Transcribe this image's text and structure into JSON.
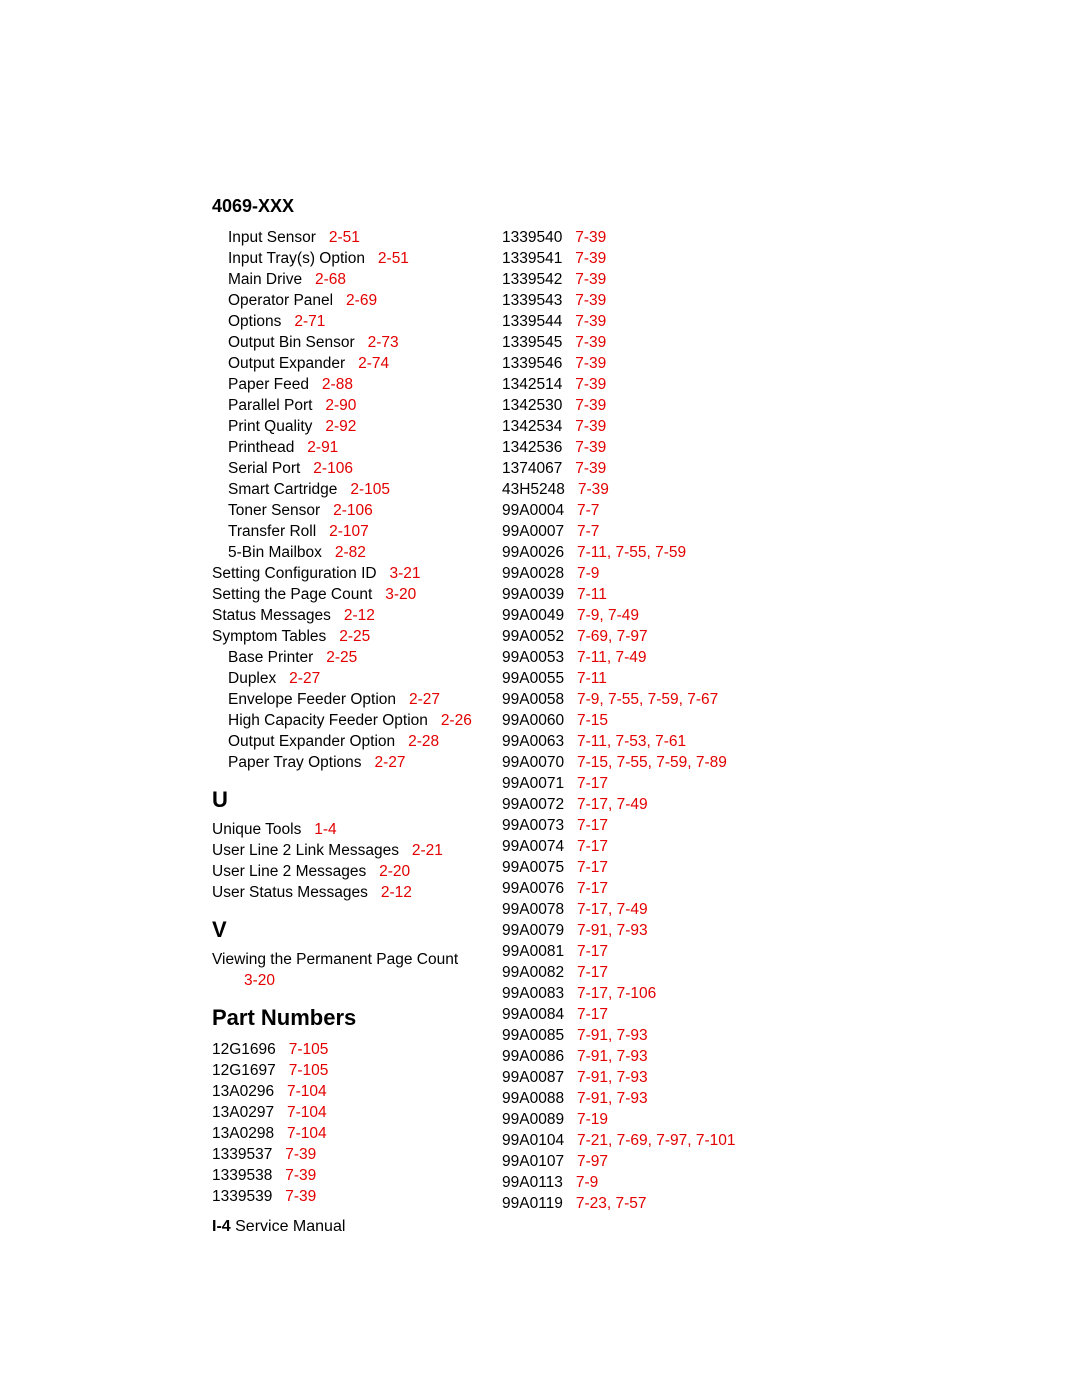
{
  "header": "4069-XXX",
  "footer_page": "I-4",
  "footer_text": " Service Manual",
  "ref_color": "#e30000",
  "left_groups": [
    {
      "type": "rows",
      "rows": [
        {
          "indent": 1,
          "label": "Input Sensor",
          "ref": "2-51"
        },
        {
          "indent": 1,
          "label": "Input Tray(s) Option",
          "ref": "2-51"
        },
        {
          "indent": 1,
          "label": "Main Drive",
          "ref": "2-68"
        },
        {
          "indent": 1,
          "label": "Operator Panel",
          "ref": "2-69"
        },
        {
          "indent": 1,
          "label": "Options",
          "ref": "2-71"
        },
        {
          "indent": 1,
          "label": "Output Bin Sensor",
          "ref": "2-73"
        },
        {
          "indent": 1,
          "label": "Output Expander",
          "ref": "2-74"
        },
        {
          "indent": 1,
          "label": "Paper Feed",
          "ref": "2-88"
        },
        {
          "indent": 1,
          "label": "Parallel Port",
          "ref": "2-90"
        },
        {
          "indent": 1,
          "label": "Print Quality",
          "ref": "2-92"
        },
        {
          "indent": 1,
          "label": "Printhead",
          "ref": "2-91"
        },
        {
          "indent": 1,
          "label": "Serial Port",
          "ref": "2-106"
        },
        {
          "indent": 1,
          "label": "Smart Cartridge",
          "ref": "2-105"
        },
        {
          "indent": 1,
          "label": "Toner Sensor",
          "ref": "2-106"
        },
        {
          "indent": 1,
          "label": "Transfer Roll",
          "ref": "2-107"
        },
        {
          "indent": 1,
          "label": "5-Bin Mailbox",
          "ref": "2-82"
        },
        {
          "indent": 0,
          "label": "Setting Configuration ID",
          "ref": "3-21"
        },
        {
          "indent": 0,
          "label": "Setting the Page Count",
          "ref": "3-20"
        },
        {
          "indent": 0,
          "label": "Status Messages",
          "ref": "2-12"
        },
        {
          "indent": 0,
          "label": "Symptom Tables",
          "ref": "2-25"
        },
        {
          "indent": 1,
          "label": "Base Printer",
          "ref": "2-25"
        },
        {
          "indent": 1,
          "label": "Duplex",
          "ref": "2-27"
        },
        {
          "indent": 1,
          "label": "Envelope Feeder Option",
          "ref": "2-27"
        },
        {
          "indent": 1,
          "label": "High Capacity Feeder Option",
          "ref": "2-26"
        },
        {
          "indent": 1,
          "label": "Output Expander Option",
          "ref": "2-28"
        },
        {
          "indent": 1,
          "label": "Paper Tray Options",
          "ref": "2-27"
        }
      ]
    },
    {
      "type": "letter",
      "text": "U"
    },
    {
      "type": "rows",
      "rows": [
        {
          "indent": 0,
          "label": "Unique Tools",
          "ref": "1-4"
        },
        {
          "indent": 0,
          "label": "User Line 2 Link Messages",
          "ref": "2-21"
        },
        {
          "indent": 0,
          "label": "User Line 2 Messages",
          "ref": "2-20"
        },
        {
          "indent": 0,
          "label": "User Status Messages",
          "ref": "2-12"
        }
      ]
    },
    {
      "type": "letter",
      "text": "V"
    },
    {
      "type": "rows",
      "rows": [
        {
          "indent": 0,
          "wrap": true,
          "line1": "Viewing the Permanent Page Count",
          "line2_ref": "3-20"
        }
      ]
    },
    {
      "type": "title",
      "text": "Part Numbers"
    },
    {
      "type": "rows",
      "rows": [
        {
          "indent": 0,
          "label": "12G1696",
          "ref": "7-105"
        },
        {
          "indent": 0,
          "label": "12G1697",
          "ref": "7-105"
        },
        {
          "indent": 0,
          "label": "13A0296",
          "ref": "7-104"
        },
        {
          "indent": 0,
          "label": "13A0297",
          "ref": "7-104"
        },
        {
          "indent": 0,
          "label": "13A0298",
          "ref": "7-104"
        },
        {
          "indent": 0,
          "label": "1339537",
          "ref": "7-39"
        },
        {
          "indent": 0,
          "label": "1339538",
          "ref": "7-39"
        },
        {
          "indent": 0,
          "label": "1339539",
          "ref": "7-39"
        }
      ]
    }
  ],
  "right_rows": [
    {
      "label": "1339540",
      "ref": "7-39"
    },
    {
      "label": "1339541",
      "ref": "7-39"
    },
    {
      "label": "1339542",
      "ref": "7-39"
    },
    {
      "label": "1339543",
      "ref": "7-39"
    },
    {
      "label": "1339544",
      "ref": "7-39"
    },
    {
      "label": "1339545",
      "ref": "7-39"
    },
    {
      "label": "1339546",
      "ref": "7-39"
    },
    {
      "label": "1342514",
      "ref": "7-39"
    },
    {
      "label": "1342530",
      "ref": "7-39"
    },
    {
      "label": "1342534",
      "ref": "7-39"
    },
    {
      "label": "1342536",
      "ref": "7-39"
    },
    {
      "label": "1374067",
      "ref": "7-39"
    },
    {
      "label": "43H5248",
      "ref": "7-39"
    },
    {
      "label": "99A0004",
      "ref": "7-7"
    },
    {
      "label": "99A0007",
      "ref": "7-7"
    },
    {
      "label": "99A0026",
      "ref": "7-11, 7-55, 7-59"
    },
    {
      "label": "99A0028",
      "ref": "7-9"
    },
    {
      "label": "99A0039",
      "ref": "7-11"
    },
    {
      "label": "99A0049",
      "ref": "7-9, 7-49"
    },
    {
      "label": "99A0052",
      "ref": "7-69, 7-97"
    },
    {
      "label": "99A0053",
      "ref": "7-11, 7-49"
    },
    {
      "label": "99A0055",
      "ref": "7-11"
    },
    {
      "label": "99A0058",
      "ref": "7-9, 7-55, 7-59, 7-67"
    },
    {
      "label": "99A0060",
      "ref": "7-15"
    },
    {
      "label": "99A0063",
      "ref": "7-11, 7-53, 7-61"
    },
    {
      "label": "99A0070",
      "ref": "7-15, 7-55, 7-59, 7-89"
    },
    {
      "label": "99A0071",
      "ref": "7-17"
    },
    {
      "label": "99A0072",
      "ref": "7-17, 7-49"
    },
    {
      "label": "99A0073",
      "ref": "7-17"
    },
    {
      "label": "99A0074",
      "ref": "7-17"
    },
    {
      "label": "99A0075",
      "ref": "7-17"
    },
    {
      "label": "99A0076",
      "ref": "7-17"
    },
    {
      "label": "99A0078",
      "ref": "7-17, 7-49"
    },
    {
      "label": "99A0079",
      "ref": "7-91, 7-93"
    },
    {
      "label": "99A0081",
      "ref": "7-17"
    },
    {
      "label": "99A0082",
      "ref": "7-17"
    },
    {
      "label": "99A0083",
      "ref": "7-17, 7-106"
    },
    {
      "label": "99A0084",
      "ref": "7-17"
    },
    {
      "label": "99A0085",
      "ref": "7-91, 7-93"
    },
    {
      "label": "99A0086",
      "ref": "7-91, 7-93"
    },
    {
      "label": "99A0087",
      "ref": "7-91, 7-93"
    },
    {
      "label": "99A0088",
      "ref": "7-91, 7-93"
    },
    {
      "label": "99A0089",
      "ref": "7-19"
    },
    {
      "label": "99A0104",
      "ref": "7-21, 7-69, 7-97, 7-101"
    },
    {
      "label": "99A0107",
      "ref": "7-97"
    },
    {
      "label": "99A0113",
      "ref": "7-9"
    },
    {
      "label": "99A0119",
      "ref": "7-23, 7-57"
    }
  ]
}
